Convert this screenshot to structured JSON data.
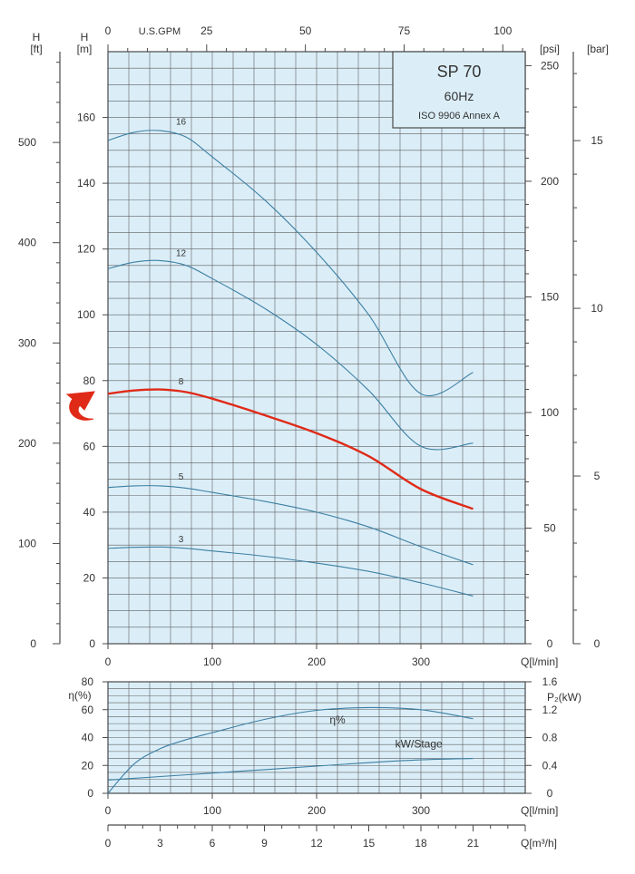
{
  "chart_data": [
    {
      "type": "line",
      "title": "SP 70",
      "frequency": "60Hz",
      "standard": "ISO 9906 Annex A",
      "xlabel": "Q[l/min]",
      "xlim": [
        0,
        400
      ],
      "x_ticks": [
        0,
        100,
        200,
        300
      ],
      "top_axis_label": "U.S.GPM",
      "top_axis_ticks": [
        0,
        25,
        50,
        75,
        100
      ],
      "ylabel": "H [m]",
      "ylabel_line1": "H",
      "ylabel_line2": "[m]",
      "ylim": [
        0,
        180
      ],
      "y_ticks": [
        0,
        20,
        40,
        60,
        80,
        100,
        120,
        140,
        160
      ],
      "y_ft_label_line1": "H",
      "y_ft_label_line2": "[ft]",
      "y_ft_ticks": [
        0,
        100,
        200,
        300,
        400,
        500
      ],
      "y_psi_label": "[psi]",
      "y_psi_ticks": [
        0,
        50,
        100,
        150,
        200,
        250
      ],
      "y_bar_label": "[bar]",
      "y_bar_ticks": [
        0,
        5,
        10,
        15
      ],
      "grid": true,
      "highlight_series": "8",
      "series": [
        {
          "name": "16",
          "x": [
            0,
            25,
            50,
            75,
            100,
            150,
            200,
            250,
            300,
            350
          ],
          "values": [
            153,
            155.5,
            156,
            154,
            148,
            135,
            119,
            100,
            76,
            82.5
          ],
          "label_at": [
            70,
            157
          ]
        },
        {
          "name": "12",
          "x": [
            0,
            25,
            50,
            75,
            100,
            150,
            200,
            250,
            300,
            350
          ],
          "values": [
            114,
            116,
            116.5,
            115,
            111,
            102,
            91,
            77,
            60,
            61
          ],
          "label_at": [
            70,
            117
          ]
        },
        {
          "name": "8",
          "x": [
            0,
            25,
            50,
            75,
            100,
            150,
            200,
            250,
            300,
            350
          ],
          "values": [
            76,
            77,
            77.3,
            76.5,
            74.5,
            69.5,
            64,
            57,
            47,
            41
          ],
          "label_at": [
            70,
            78
          ]
        },
        {
          "name": "5",
          "x": [
            0,
            25,
            50,
            75,
            100,
            150,
            200,
            250,
            300,
            350
          ],
          "values": [
            47.5,
            48,
            48,
            47.3,
            46,
            43.3,
            40,
            35.5,
            29.5,
            24
          ],
          "label_at": [
            70,
            49
          ]
        },
        {
          "name": "3",
          "x": [
            0,
            25,
            50,
            75,
            100,
            150,
            200,
            250,
            300,
            350
          ],
          "values": [
            29,
            29.3,
            29.4,
            29,
            28.2,
            26.6,
            24.5,
            22,
            18.5,
            14.5
          ],
          "label_at": [
            70,
            30
          ]
        }
      ]
    },
    {
      "type": "line",
      "xlabel": "Q[l/min]",
      "xlim": [
        0,
        400
      ],
      "x_ticks": [
        0,
        100,
        200,
        300
      ],
      "ylabel_left": "η(%)",
      "ylim_left": [
        0,
        80
      ],
      "y_ticks_left": [
        0,
        20,
        40,
        60,
        80
      ],
      "ylabel_right": "P₂(kW)",
      "ylim_right": [
        0,
        1.6
      ],
      "y_ticks_right": [
        0,
        0.4,
        0.8,
        1.2,
        1.6
      ],
      "flow_m3h_label": "Q[m³/h]",
      "flow_m3h_ticks": [
        0,
        3,
        6,
        9,
        12,
        15,
        18,
        21
      ],
      "grid": true,
      "series": [
        {
          "name": "η%",
          "axis": "left",
          "x": [
            0,
            25,
            50,
            75,
            100,
            150,
            200,
            250,
            300,
            350
          ],
          "values": [
            0,
            21,
            32,
            38.5,
            43.5,
            53,
            59.5,
            61.5,
            60,
            53.5
          ],
          "label_at": [
            220,
            50
          ]
        },
        {
          "name": "kW/Stage",
          "axis": "right",
          "x": [
            0,
            10,
            50,
            100,
            150,
            200,
            250,
            300,
            350
          ],
          "values": [
            0.19,
            0.2,
            0.24,
            0.29,
            0.34,
            0.39,
            0.44,
            0.48,
            0.5
          ],
          "label_at": [
            298,
            0.66
          ]
        }
      ]
    }
  ],
  "colors": {
    "plot_bg": "#dbeef8",
    "curve": "#3d7fa3",
    "highlight": "#e02a18",
    "text": "#333333"
  },
  "arrow_icon": "curved-arrow-icon"
}
